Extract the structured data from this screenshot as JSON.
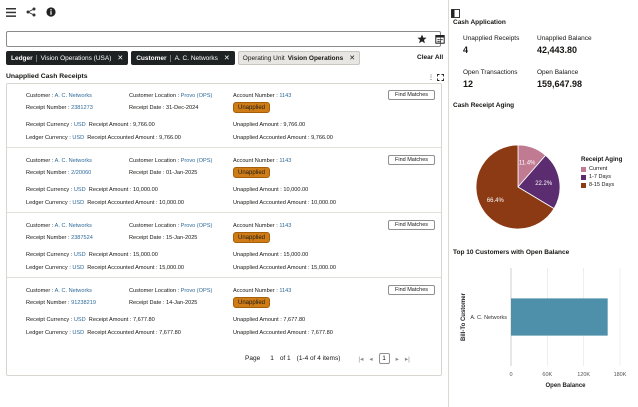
{
  "search": {
    "placeholder": "",
    "value": ""
  },
  "filters": [
    {
      "key": "Ledger",
      "value": "Vision Operations (USA)",
      "style": "dark"
    },
    {
      "key": "Customer",
      "value": "A. C. Networks",
      "style": "dark"
    },
    {
      "key": "Operating Unit",
      "value": "Vision Operations",
      "style": "light"
    }
  ],
  "clear_all": "Clear All",
  "receipts_title": "Unapplied Cash Receipts",
  "labels": {
    "customer": "Customer : ",
    "customer_location": "Customer Location : ",
    "account_number": "Account Number : ",
    "receipt_number": "Receipt Number : ",
    "receipt_date": "Receipt Date : ",
    "receipt_currency": "Receipt Currency : ",
    "receipt_amount": "Receipt Amount : ",
    "ledger_currency": "Ledger Currency : ",
    "receipt_accounted_amount": "Receipt Accounted Amount : ",
    "unapplied_amount": "Unapplied Amount : ",
    "unapplied_accounted_amount": "Unapplied Accounted Amount : ",
    "find_matches": "Find Matches"
  },
  "receipts": [
    {
      "customer": "A. C. Networks",
      "location": "Provo (OPS)",
      "account": "1143",
      "receipt_number": "2381273",
      "receipt_date": "31-Dec-2024",
      "status": "Unapplied",
      "receipt_currency": "USD",
      "receipt_amount": "9,766.00",
      "unapplied_amount": "9,766.00",
      "ledger_currency": "USD",
      "accounted_amount": "9,766.00",
      "unapplied_accounted": "9,766.00"
    },
    {
      "customer": "A. C. Networks",
      "location": "Provo (OPS)",
      "account": "1143",
      "receipt_number": "2/20060",
      "receipt_date": "01-Jan-2025",
      "status": "Unapplied",
      "receipt_currency": "USD",
      "receipt_amount": "10,000.00",
      "unapplied_amount": "10,000.00",
      "ledger_currency": "USD",
      "accounted_amount": "10,000.00",
      "unapplied_accounted": "10,000.00"
    },
    {
      "customer": "A. C. Networks",
      "location": "Provo (OPS)",
      "account": "1143",
      "receipt_number": "2387524",
      "receipt_date": "15-Jan-2025",
      "status": "Unapplied",
      "receipt_currency": "USD",
      "receipt_amount": "15,000.00",
      "unapplied_amount": "15,000.00",
      "ledger_currency": "USD",
      "accounted_amount": "15,000.00",
      "unapplied_accounted": "15,000.00"
    },
    {
      "customer": "A. C. Networks",
      "location": "Provo (OPS)",
      "account": "1143",
      "receipt_number": "91238219",
      "receipt_date": "14-Jan-2025",
      "status": "Unapplied",
      "receipt_currency": "USD",
      "receipt_amount": "7,677.80",
      "unapplied_amount": "7,677.80",
      "ledger_currency": "USD",
      "accounted_amount": "7,677.80",
      "unapplied_accounted": "7,677.80"
    }
  ],
  "pager": {
    "page_label": "Page",
    "page": "1",
    "of_label": "of 1",
    "range": "(1-4 of 4 items)",
    "current": "1"
  },
  "right": {
    "title": "Cash Application",
    "metrics": [
      {
        "label": "Unapplied Receipts",
        "value": "4"
      },
      {
        "label": "Unapplied Balance",
        "value": "42,443.80"
      },
      {
        "label": "Open Transactions",
        "value": "12"
      },
      {
        "label": "Open Balance",
        "value": "159,647.98"
      }
    ],
    "aging_title": "Cash Receipt Aging",
    "top10_title": "Top 10 Customers with Open Balance"
  },
  "chart_data": [
    {
      "type": "pie",
      "title": "Cash Receipt Aging",
      "legend_title": "Receipt Aging",
      "legend_position": "right",
      "slices": [
        {
          "name": "Current",
          "value": 11.4,
          "label": "11.4%",
          "color": "#c07a92"
        },
        {
          "name": "1-7 Days",
          "value": 22.2,
          "label": "22.2%",
          "color": "#5b2c6f"
        },
        {
          "name": "8-15 Days",
          "value": 66.4,
          "label": "66.4%",
          "color": "#8b3a14"
        }
      ]
    },
    {
      "type": "bar",
      "orientation": "horizontal",
      "title": "Top 10 Customers with Open Balance",
      "categories": [
        "A. C. Networks"
      ],
      "values": [
        159647.98
      ],
      "ylabel": "Bill-To Customer",
      "xlabel": "Open Balance",
      "xlim": [
        0,
        180000
      ],
      "ticks": [
        {
          "value": 0,
          "label": "0"
        },
        {
          "value": 60000,
          "label": "60K"
        },
        {
          "value": 120000,
          "label": "120K"
        },
        {
          "value": 180000,
          "label": "180K"
        }
      ],
      "color": "#4e8faa"
    }
  ]
}
